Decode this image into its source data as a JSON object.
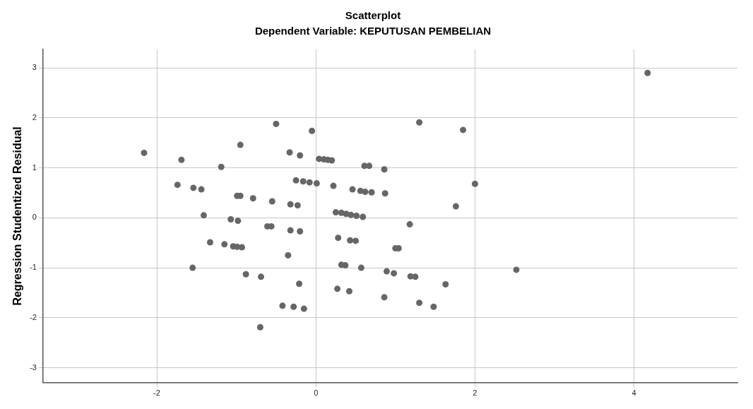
{
  "chart_data": {
    "type": "scatter",
    "title": "Scatterplot",
    "subtitle": "Dependent Variable: KEPUTUSAN PEMBELIAN",
    "ylabel": "Regression Studentized Residual",
    "xlim": [
      -3.43,
      5.3
    ],
    "ylim": [
      -3.3,
      3.37
    ],
    "xticks": [
      -2,
      0,
      2,
      4
    ],
    "yticks": [
      -3,
      -2,
      -1,
      0,
      1,
      2,
      3
    ],
    "grid": true,
    "marker": "circle",
    "legend": false,
    "series": [
      {
        "color": "#666666",
        "x": [
          -0.5,
          -0.05,
          -0.95,
          -2.16,
          -0.33,
          -0.2,
          -1.69,
          0.04,
          0.1,
          0.15,
          0.2,
          -1.19,
          -1.74,
          -1.54,
          -1.44,
          -0.25,
          -0.16,
          -0.08,
          0.01,
          0.22,
          -0.99,
          -0.95,
          -0.79,
          -0.55,
          -0.32,
          -0.23,
          -1.41,
          -1.07,
          -0.98,
          -0.61,
          -0.56,
          -0.32,
          -0.2,
          -1.33,
          -1.15,
          -1.04,
          -0.99,
          -0.93,
          -0.35,
          -1.55,
          -0.88,
          -0.69,
          -0.21,
          -0.42,
          -0.28,
          -0.15,
          -0.7,
          1.3,
          1.85,
          0.61,
          0.67,
          0.86,
          0.46,
          0.56,
          0.62,
          0.7,
          0.87,
          2.0,
          1.76,
          0.25,
          0.32,
          0.38,
          0.44,
          0.51,
          0.59,
          1.18,
          0.28,
          0.43,
          0.5,
          1.0,
          1.04,
          0.32,
          0.37,
          0.57,
          0.89,
          0.98,
          1.19,
          1.25,
          1.63,
          2.52,
          0.27,
          0.42,
          0.86,
          1.3,
          1.48,
          4.17
        ],
        "values": [
          1.88,
          1.74,
          1.46,
          1.3,
          1.31,
          1.25,
          1.16,
          1.18,
          1.17,
          1.16,
          1.15,
          1.02,
          0.66,
          0.6,
          0.57,
          0.75,
          0.73,
          0.71,
          0.69,
          0.64,
          0.44,
          0.44,
          0.39,
          0.33,
          0.27,
          0.25,
          0.05,
          -0.03,
          -0.06,
          -0.17,
          -0.17,
          -0.25,
          -0.27,
          -0.49,
          -0.53,
          -0.57,
          -0.58,
          -0.59,
          -0.75,
          -1.0,
          -1.13,
          -1.18,
          -1.32,
          -1.76,
          -1.78,
          -1.82,
          -2.19,
          1.91,
          1.76,
          1.04,
          1.04,
          0.97,
          0.57,
          0.54,
          0.52,
          0.51,
          0.49,
          0.68,
          0.23,
          0.11,
          0.1,
          0.08,
          0.06,
          0.04,
          0.02,
          -0.13,
          -0.4,
          -0.45,
          -0.46,
          -0.61,
          -0.61,
          -0.94,
          -0.95,
          -1.0,
          -1.07,
          -1.11,
          -1.17,
          -1.18,
          -1.33,
          -1.04,
          -1.42,
          -1.47,
          -1.59,
          -1.7,
          -1.78,
          2.9
        ]
      }
    ]
  }
}
